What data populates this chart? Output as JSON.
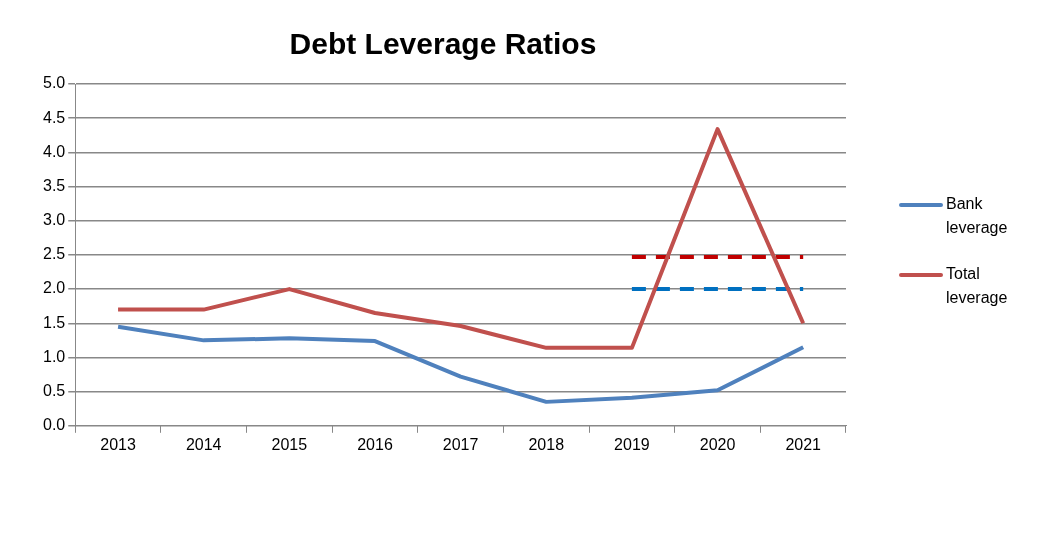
{
  "chart_data": {
    "type": "line",
    "title": "Debt Leverage Ratios",
    "categories": [
      "2013",
      "2014",
      "2015",
      "2016",
      "2017",
      "2018",
      "2019",
      "2020",
      "2021"
    ],
    "series": [
      {
        "name": "Bank leverage",
        "color": "#4f81bd",
        "values": [
          1.45,
          1.25,
          1.28,
          1.24,
          0.72,
          0.35,
          0.41,
          0.52,
          1.15
        ]
      },
      {
        "name": "Total leverage",
        "color": "#c0504d",
        "values": [
          1.7,
          1.7,
          2.0,
          1.65,
          1.46,
          1.14,
          1.14,
          4.34,
          1.5
        ]
      },
      {
        "color": "#c00000",
        "line_style": "dashed",
        "values": [
          null,
          null,
          null,
          null,
          null,
          null,
          2.47,
          2.47,
          2.47
        ]
      },
      {
        "color": "#0070c0",
        "line_style": "dashed",
        "values": [
          null,
          null,
          null,
          null,
          null,
          null,
          2.0,
          2.0,
          2.0
        ]
      }
    ],
    "ylim": [
      0,
      5
    ],
    "yticks": [
      {
        "value": 0,
        "label": "0.0"
      },
      {
        "value": 0.5,
        "label": "0.5"
      },
      {
        "value": 1,
        "label": "1.0"
      },
      {
        "value": 1.5,
        "label": "1.5"
      },
      {
        "value": 2,
        "label": "2.0"
      },
      {
        "value": 2.5,
        "label": "2.5"
      },
      {
        "value": 3,
        "label": "3.0"
      },
      {
        "value": 3.5,
        "label": "3.5"
      },
      {
        "value": 4,
        "label": "4.0"
      },
      {
        "value": 4.5,
        "label": "4.5"
      },
      {
        "value": 5,
        "label": "5.0"
      }
    ],
    "grid": "y",
    "legend": "right",
    "marker": "none"
  }
}
